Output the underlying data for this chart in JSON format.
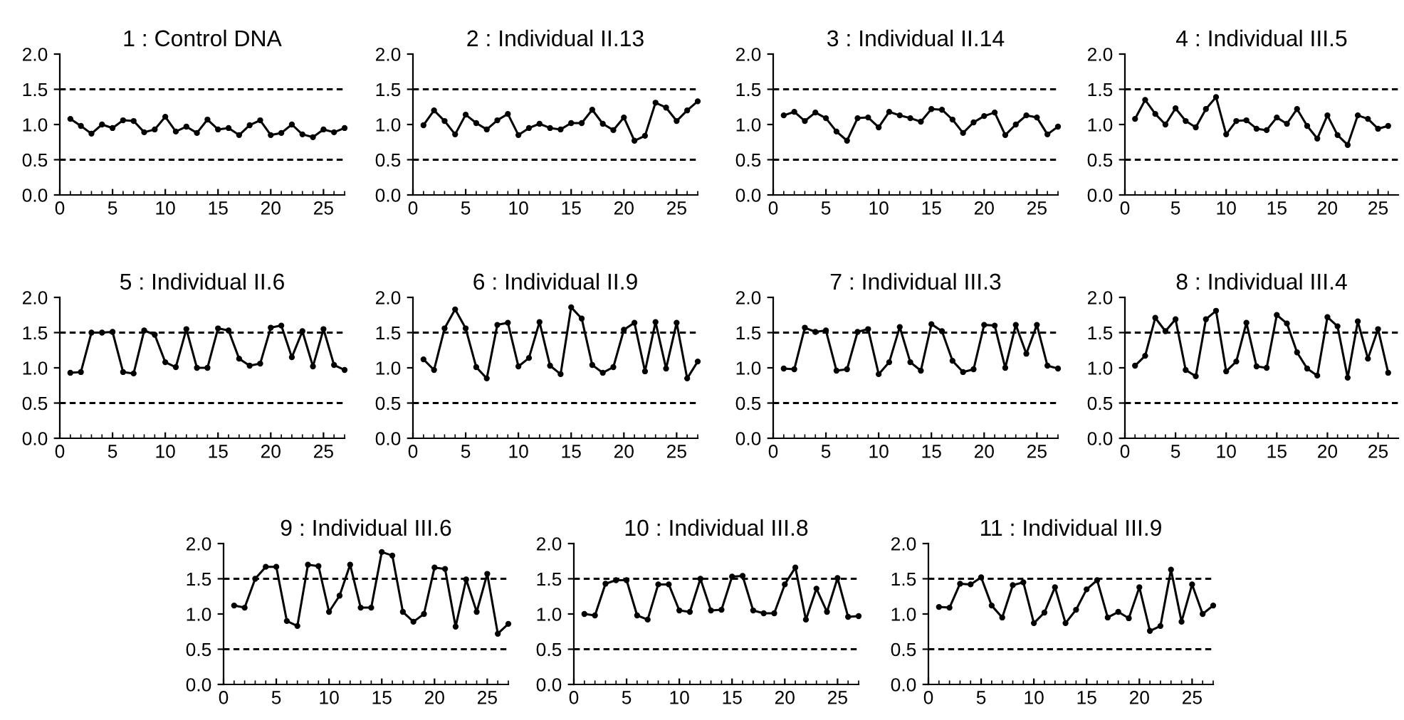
{
  "chart_data": [
    {
      "type": "line",
      "title": "1 : Control DNA",
      "x": [
        1,
        2,
        3,
        4,
        5,
        6,
        7,
        8,
        9,
        10,
        11,
        12,
        13,
        14,
        15,
        16,
        17,
        18,
        19,
        20,
        21,
        22,
        23,
        24,
        25,
        26,
        27
      ],
      "marker": "circle",
      "line_style": "solid",
      "xlim": [
        0,
        27
      ],
      "xticks": [
        0,
        5,
        10,
        15,
        20,
        25
      ],
      "ylim": [
        0,
        2
      ],
      "yticks": [
        {
          "value": 0,
          "label": "0.0"
        },
        {
          "value": 0.5,
          "label": "0.5"
        },
        {
          "value": 1,
          "label": "1.0"
        },
        {
          "value": 1.5,
          "label": "1.5"
        },
        {
          "value": 2,
          "label": "2.0"
        }
      ],
      "ref_lines": [
        {
          "axis": "y",
          "value": 0.5,
          "color": "#000000",
          "line_style": "dashed"
        },
        {
          "axis": "y",
          "value": 1.5,
          "color": "#000000",
          "line_style": "dashed"
        }
      ],
      "series": [
        {
          "color": "#000000",
          "values": [
            1.08,
            0.98,
            0.87,
            1.0,
            0.95,
            1.06,
            1.05,
            0.89,
            0.93,
            1.11,
            0.9,
            0.97,
            0.88,
            1.07,
            0.93,
            0.95,
            0.85,
            0.99,
            1.06,
            0.85,
            0.88,
            1.0,
            0.86,
            0.82,
            0.93,
            0.89,
            0.95
          ]
        }
      ]
    },
    {
      "type": "line",
      "title": "2 : Individual II.13",
      "x": [
        1,
        2,
        3,
        4,
        5,
        6,
        7,
        8,
        9,
        10,
        11,
        12,
        13,
        14,
        15,
        16,
        17,
        18,
        19,
        20,
        21,
        22,
        23,
        24,
        25,
        26,
        27
      ],
      "marker": "circle",
      "line_style": "solid",
      "xlim": [
        0,
        27
      ],
      "xticks": [
        0,
        5,
        10,
        15,
        20,
        25
      ],
      "ylim": [
        0,
        2
      ],
      "yticks": [
        {
          "value": 0,
          "label": "0.0"
        },
        {
          "value": 0.5,
          "label": "0.5"
        },
        {
          "value": 1,
          "label": "1.0"
        },
        {
          "value": 1.5,
          "label": "1.5"
        },
        {
          "value": 2,
          "label": "2.0"
        }
      ],
      "ref_lines": [
        {
          "axis": "y",
          "value": 0.5,
          "color": "#000000",
          "line_style": "dashed"
        },
        {
          "axis": "y",
          "value": 1.5,
          "color": "#000000",
          "line_style": "dashed"
        }
      ],
      "series": [
        {
          "color": "#000000",
          "values": [
            0.99,
            1.2,
            1.05,
            0.86,
            1.14,
            1.02,
            0.93,
            1.06,
            1.15,
            0.85,
            0.95,
            1.01,
            0.95,
            0.93,
            1.02,
            1.02,
            1.21,
            1.01,
            0.92,
            1.1,
            0.77,
            0.84,
            1.31,
            1.24,
            1.05,
            1.2,
            1.33
          ]
        }
      ]
    },
    {
      "type": "line",
      "title": "3 : Individual II.14",
      "x": [
        1,
        2,
        3,
        4,
        5,
        6,
        7,
        8,
        9,
        10,
        11,
        12,
        13,
        14,
        15,
        16,
        17,
        18,
        19,
        20,
        21,
        22,
        23,
        24,
        25,
        26,
        27
      ],
      "marker": "circle",
      "line_style": "solid",
      "xlim": [
        0,
        27
      ],
      "xticks": [
        0,
        5,
        10,
        15,
        20,
        25
      ],
      "ylim": [
        0,
        2
      ],
      "yticks": [
        {
          "value": 0,
          "label": "0.0"
        },
        {
          "value": 0.5,
          "label": "0.5"
        },
        {
          "value": 1,
          "label": "1.0"
        },
        {
          "value": 1.5,
          "label": "1.5"
        },
        {
          "value": 2,
          "label": "2.0"
        }
      ],
      "ref_lines": [
        {
          "axis": "y",
          "value": 0.5,
          "color": "#000000",
          "line_style": "dashed"
        },
        {
          "axis": "y",
          "value": 1.5,
          "color": "#000000",
          "line_style": "dashed"
        }
      ],
      "series": [
        {
          "color": "#000000",
          "values": [
            1.13,
            1.18,
            1.05,
            1.17,
            1.09,
            0.9,
            0.77,
            1.09,
            1.1,
            0.96,
            1.18,
            1.13,
            1.09,
            1.04,
            1.22,
            1.21,
            1.07,
            0.88,
            1.03,
            1.12,
            1.17,
            0.85,
            1.0,
            1.13,
            1.1,
            0.86,
            0.97
          ]
        }
      ]
    },
    {
      "type": "line",
      "title": "4 : Individual III.5",
      "x": [
        1,
        2,
        3,
        4,
        5,
        6,
        7,
        8,
        9,
        10,
        11,
        12,
        13,
        14,
        15,
        16,
        17,
        18,
        19,
        20,
        21,
        22,
        23,
        24,
        25,
        26
      ],
      "marker": "circle",
      "line_style": "solid",
      "xlim": [
        0,
        27
      ],
      "xticks": [
        0,
        5,
        10,
        15,
        20,
        25
      ],
      "ylim": [
        0,
        2
      ],
      "yticks": [
        {
          "value": 0,
          "label": "0.0"
        },
        {
          "value": 0.5,
          "label": "0.5"
        },
        {
          "value": 1,
          "label": "1.0"
        },
        {
          "value": 1.5,
          "label": "1.5"
        },
        {
          "value": 2,
          "label": "2.0"
        }
      ],
      "ref_lines": [
        {
          "axis": "y",
          "value": 0.5,
          "color": "#000000",
          "line_style": "dashed"
        },
        {
          "axis": "y",
          "value": 1.5,
          "color": "#000000",
          "line_style": "dashed"
        }
      ],
      "series": [
        {
          "color": "#000000",
          "values": [
            1.08,
            1.35,
            1.15,
            1.0,
            1.23,
            1.05,
            0.96,
            1.22,
            1.39,
            0.86,
            1.05,
            1.06,
            0.94,
            0.92,
            1.1,
            1.01,
            1.22,
            0.98,
            0.8,
            1.13,
            0.85,
            0.71,
            1.13,
            1.08,
            0.94,
            0.98
          ]
        }
      ]
    },
    {
      "type": "line",
      "title": "5 : Individual II.6",
      "x": [
        1,
        2,
        3,
        4,
        5,
        6,
        7,
        8,
        9,
        10,
        11,
        12,
        13,
        14,
        15,
        16,
        17,
        18,
        19,
        20,
        21,
        22,
        23,
        24,
        25,
        26,
        27
      ],
      "marker": "circle",
      "line_style": "solid",
      "xlim": [
        0,
        27
      ],
      "xticks": [
        0,
        5,
        10,
        15,
        20,
        25
      ],
      "ylim": [
        0,
        2
      ],
      "yticks": [
        {
          "value": 0,
          "label": "0.0"
        },
        {
          "value": 0.5,
          "label": "0.5"
        },
        {
          "value": 1,
          "label": "1.0"
        },
        {
          "value": 1.5,
          "label": "1.5"
        },
        {
          "value": 2,
          "label": "2.0"
        }
      ],
      "ref_lines": [
        {
          "axis": "y",
          "value": 0.5,
          "color": "#000000",
          "line_style": "dashed"
        },
        {
          "axis": "y",
          "value": 1.5,
          "color": "#000000",
          "line_style": "dashed"
        }
      ],
      "series": [
        {
          "color": "#000000",
          "values": [
            0.93,
            0.94,
            1.5,
            1.5,
            1.51,
            0.94,
            0.92,
            1.53,
            1.47,
            1.08,
            1.01,
            1.55,
            1.0,
            1.0,
            1.56,
            1.53,
            1.13,
            1.03,
            1.06,
            1.57,
            1.6,
            1.15,
            1.52,
            1.02,
            1.55,
            1.04,
            0.97
          ]
        }
      ]
    },
    {
      "type": "line",
      "title": "6 : Individual II.9",
      "x": [
        1,
        2,
        3,
        4,
        5,
        6,
        7,
        8,
        9,
        10,
        11,
        12,
        13,
        14,
        15,
        16,
        17,
        18,
        19,
        20,
        21,
        22,
        23,
        24,
        25,
        26,
        27
      ],
      "marker": "circle",
      "line_style": "solid",
      "xlim": [
        0,
        27
      ],
      "xticks": [
        0,
        5,
        10,
        15,
        20,
        25
      ],
      "ylim": [
        0,
        2
      ],
      "yticks": [
        {
          "value": 0,
          "label": "0.0"
        },
        {
          "value": 0.5,
          "label": "0.5"
        },
        {
          "value": 1,
          "label": "1.0"
        },
        {
          "value": 1.5,
          "label": "1.5"
        },
        {
          "value": 2,
          "label": "2.0"
        }
      ],
      "ref_lines": [
        {
          "axis": "y",
          "value": 0.5,
          "color": "#000000",
          "line_style": "dashed"
        },
        {
          "axis": "y",
          "value": 1.5,
          "color": "#000000",
          "line_style": "dashed"
        }
      ],
      "series": [
        {
          "color": "#000000",
          "values": [
            1.12,
            0.97,
            1.56,
            1.83,
            1.56,
            1.01,
            0.85,
            1.61,
            1.64,
            1.02,
            1.14,
            1.65,
            1.03,
            0.91,
            1.86,
            1.7,
            1.04,
            0.93,
            1.01,
            1.54,
            1.64,
            0.95,
            1.65,
            0.99,
            1.64,
            0.85,
            1.09
          ]
        }
      ]
    },
    {
      "type": "line",
      "title": "7 : Individual III.3",
      "x": [
        1,
        2,
        3,
        4,
        5,
        6,
        7,
        8,
        9,
        10,
        11,
        12,
        13,
        14,
        15,
        16,
        17,
        18,
        19,
        20,
        21,
        22,
        23,
        24,
        25,
        26,
        27
      ],
      "marker": "circle",
      "line_style": "solid",
      "xlim": [
        0,
        27
      ],
      "xticks": [
        0,
        5,
        10,
        15,
        20,
        25
      ],
      "ylim": [
        0,
        2
      ],
      "yticks": [
        {
          "value": 0,
          "label": "0.0"
        },
        {
          "value": 0.5,
          "label": "0.5"
        },
        {
          "value": 1,
          "label": "1.0"
        },
        {
          "value": 1.5,
          "label": "1.5"
        },
        {
          "value": 2,
          "label": "2.0"
        }
      ],
      "ref_lines": [
        {
          "axis": "y",
          "value": 0.5,
          "color": "#000000",
          "line_style": "dashed"
        },
        {
          "axis": "y",
          "value": 1.5,
          "color": "#000000",
          "line_style": "dashed"
        }
      ],
      "series": [
        {
          "color": "#000000",
          "values": [
            0.99,
            0.98,
            1.57,
            1.51,
            1.53,
            0.96,
            0.98,
            1.51,
            1.55,
            0.91,
            1.08,
            1.58,
            1.08,
            0.96,
            1.62,
            1.52,
            1.1,
            0.94,
            0.98,
            1.61,
            1.6,
            1.0,
            1.61,
            1.2,
            1.61,
            1.03,
            0.99
          ]
        }
      ]
    },
    {
      "type": "line",
      "title": "8 : Individual III.4",
      "x": [
        1,
        2,
        3,
        4,
        5,
        6,
        7,
        8,
        9,
        10,
        11,
        12,
        13,
        14,
        15,
        16,
        17,
        18,
        19,
        20,
        21,
        22,
        23,
        24,
        25,
        26
      ],
      "marker": "circle",
      "line_style": "solid",
      "xlim": [
        0,
        27
      ],
      "xticks": [
        0,
        5,
        10,
        15,
        20,
        25
      ],
      "ylim": [
        0,
        2
      ],
      "yticks": [
        {
          "value": 0,
          "label": "0.0"
        },
        {
          "value": 0.5,
          "label": "0.5"
        },
        {
          "value": 1,
          "label": "1.0"
        },
        {
          "value": 1.5,
          "label": "1.5"
        },
        {
          "value": 2,
          "label": "2.0"
        }
      ],
      "ref_lines": [
        {
          "axis": "y",
          "value": 0.5,
          "color": "#000000",
          "line_style": "dashed"
        },
        {
          "axis": "y",
          "value": 1.5,
          "color": "#000000",
          "line_style": "dashed"
        }
      ],
      "series": [
        {
          "color": "#000000",
          "values": [
            1.03,
            1.17,
            1.71,
            1.52,
            1.69,
            0.97,
            0.88,
            1.69,
            1.81,
            0.95,
            1.09,
            1.64,
            1.02,
            1.0,
            1.75,
            1.63,
            1.22,
            0.99,
            0.89,
            1.72,
            1.59,
            0.86,
            1.66,
            1.13,
            1.55,
            0.93
          ]
        }
      ]
    },
    {
      "type": "line",
      "title": "9 : Individual III.6",
      "x": [
        1,
        2,
        3,
        4,
        5,
        6,
        7,
        8,
        9,
        10,
        11,
        12,
        13,
        14,
        15,
        16,
        17,
        18,
        19,
        20,
        21,
        22,
        23,
        24,
        25,
        26,
        27
      ],
      "marker": "circle",
      "line_style": "solid",
      "xlim": [
        0,
        27
      ],
      "xticks": [
        0,
        5,
        10,
        15,
        20,
        25
      ],
      "ylim": [
        0,
        2
      ],
      "yticks": [
        {
          "value": 0,
          "label": "0.0"
        },
        {
          "value": 0.5,
          "label": "0.5"
        },
        {
          "value": 1,
          "label": "1.0"
        },
        {
          "value": 1.5,
          "label": "1.5"
        },
        {
          "value": 2,
          "label": "2.0"
        }
      ],
      "ref_lines": [
        {
          "axis": "y",
          "value": 0.5,
          "color": "#000000",
          "line_style": "dashed"
        },
        {
          "axis": "y",
          "value": 1.5,
          "color": "#000000",
          "line_style": "dashed"
        }
      ],
      "series": [
        {
          "color": "#000000",
          "values": [
            1.12,
            1.09,
            1.5,
            1.67,
            1.67,
            0.9,
            0.83,
            1.7,
            1.68,
            1.03,
            1.26,
            1.7,
            1.09,
            1.09,
            1.88,
            1.83,
            1.03,
            0.89,
            1.0,
            1.66,
            1.64,
            0.82,
            1.49,
            1.03,
            1.57,
            0.72,
            0.86
          ]
        }
      ]
    },
    {
      "type": "line",
      "title": "10 : Individual III.8",
      "x": [
        1,
        2,
        3,
        4,
        5,
        6,
        7,
        8,
        9,
        10,
        11,
        12,
        13,
        14,
        15,
        16,
        17,
        18,
        19,
        20,
        21,
        22,
        23,
        24,
        25,
        26,
        27
      ],
      "marker": "circle",
      "line_style": "solid",
      "xlim": [
        0,
        27
      ],
      "xticks": [
        0,
        5,
        10,
        15,
        20,
        25
      ],
      "ylim": [
        0,
        2
      ],
      "yticks": [
        {
          "value": 0,
          "label": "0.0"
        },
        {
          "value": 0.5,
          "label": "0.5"
        },
        {
          "value": 1,
          "label": "1.0"
        },
        {
          "value": 1.5,
          "label": "1.5"
        },
        {
          "value": 2,
          "label": "2.0"
        }
      ],
      "ref_lines": [
        {
          "axis": "y",
          "value": 0.5,
          "color": "#000000",
          "line_style": "dashed"
        },
        {
          "axis": "y",
          "value": 1.5,
          "color": "#000000",
          "line_style": "dashed"
        }
      ],
      "series": [
        {
          "color": "#000000",
          "values": [
            1.0,
            0.98,
            1.43,
            1.48,
            1.48,
            0.98,
            0.92,
            1.42,
            1.42,
            1.05,
            1.03,
            1.5,
            1.05,
            1.06,
            1.53,
            1.54,
            1.05,
            1.01,
            1.01,
            1.42,
            1.66,
            0.92,
            1.36,
            1.03,
            1.51,
            0.96,
            0.97
          ]
        }
      ]
    },
    {
      "type": "line",
      "title": "11 : Individual III.9",
      "x": [
        1,
        2,
        3,
        4,
        5,
        6,
        7,
        8,
        9,
        10,
        11,
        12,
        13,
        14,
        15,
        16,
        17,
        18,
        19,
        20,
        21,
        22,
        23,
        24,
        25,
        26,
        27
      ],
      "marker": "circle",
      "line_style": "solid",
      "xlim": [
        0,
        27
      ],
      "xticks": [
        0,
        5,
        10,
        15,
        20,
        25
      ],
      "ylim": [
        0,
        2
      ],
      "yticks": [
        {
          "value": 0,
          "label": "0.0"
        },
        {
          "value": 0.5,
          "label": "0.5"
        },
        {
          "value": 1,
          "label": "1.0"
        },
        {
          "value": 1.5,
          "label": "1.5"
        },
        {
          "value": 2,
          "label": "2.0"
        }
      ],
      "ref_lines": [
        {
          "axis": "y",
          "value": 0.5,
          "color": "#000000",
          "line_style": "dashed"
        },
        {
          "axis": "y",
          "value": 1.5,
          "color": "#000000",
          "line_style": "dashed"
        }
      ],
      "series": [
        {
          "color": "#000000",
          "values": [
            1.1,
            1.09,
            1.43,
            1.42,
            1.52,
            1.12,
            0.95,
            1.41,
            1.45,
            0.87,
            1.02,
            1.38,
            0.87,
            1.06,
            1.35,
            1.48,
            0.95,
            1.03,
            0.94,
            1.38,
            0.76,
            0.83,
            1.63,
            0.89,
            1.42,
            1.0,
            1.12
          ]
        }
      ]
    }
  ]
}
